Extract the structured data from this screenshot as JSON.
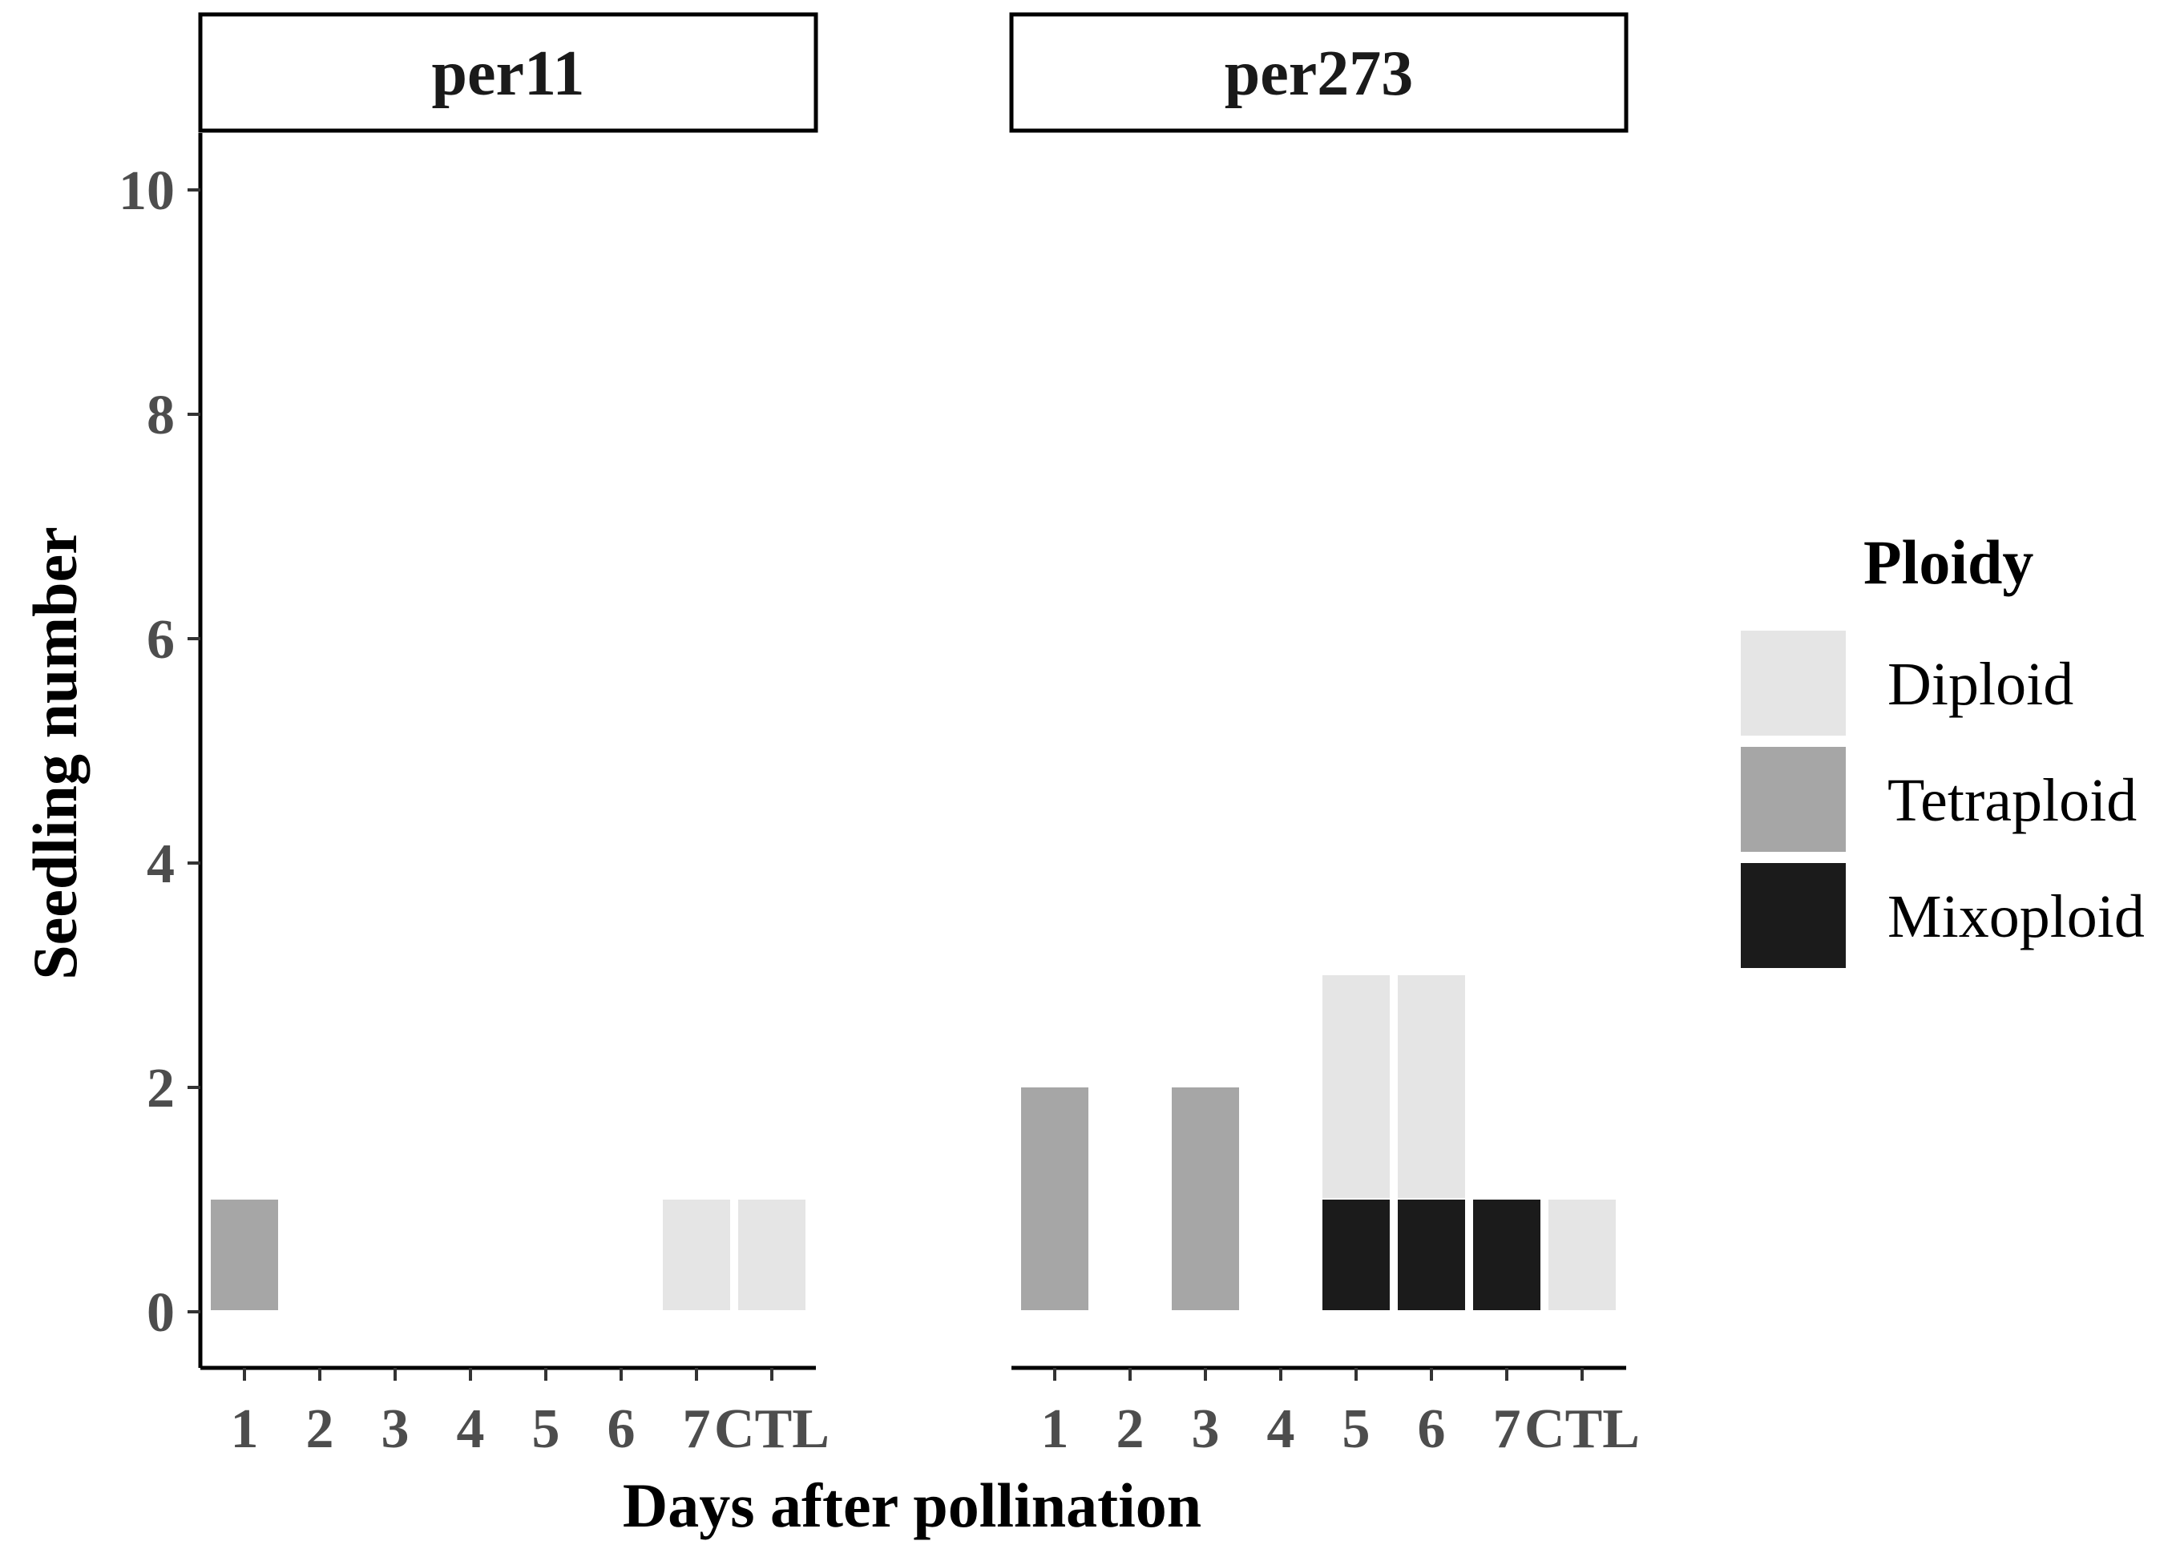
{
  "chart_data": {
    "type": "bar",
    "stacked": true,
    "xlabel": "Days after pollination",
    "ylabel": "Seedling number",
    "ylim": [
      0,
      10
    ],
    "yticks": [
      0,
      2,
      4,
      6,
      8,
      10
    ],
    "categories": [
      "1",
      "2",
      "3",
      "4",
      "5",
      "6",
      "7",
      "CTL"
    ],
    "legend": {
      "title": "Ploidy",
      "position": "right",
      "items": [
        {
          "name": "Diploid",
          "color": "#e5e5e5"
        },
        {
          "name": "Tetraploid",
          "color": "#a6a6a6"
        },
        {
          "name": "Mixoploid",
          "color": "#1b1b1b"
        }
      ]
    },
    "grid": false,
    "panels": [
      {
        "title": "per11",
        "series": [
          {
            "name": "Mixoploid",
            "values": [
              0,
              0,
              0,
              0,
              0,
              0,
              0,
              0
            ]
          },
          {
            "name": "Tetraploid",
            "values": [
              1,
              0,
              0,
              0,
              0,
              0,
              0,
              0
            ]
          },
          {
            "name": "Diploid",
            "values": [
              0,
              0,
              0,
              0,
              0,
              0,
              1,
              1
            ]
          }
        ]
      },
      {
        "title": "per273",
        "series": [
          {
            "name": "Mixoploid",
            "values": [
              0,
              0,
              0,
              0,
              1,
              1,
              1,
              0
            ]
          },
          {
            "name": "Tetraploid",
            "values": [
              2,
              0,
              2,
              0,
              0,
              0,
              0,
              0
            ]
          },
          {
            "name": "Diploid",
            "values": [
              0,
              0,
              0,
              0,
              2,
              2,
              0,
              1
            ]
          }
        ]
      }
    ]
  }
}
